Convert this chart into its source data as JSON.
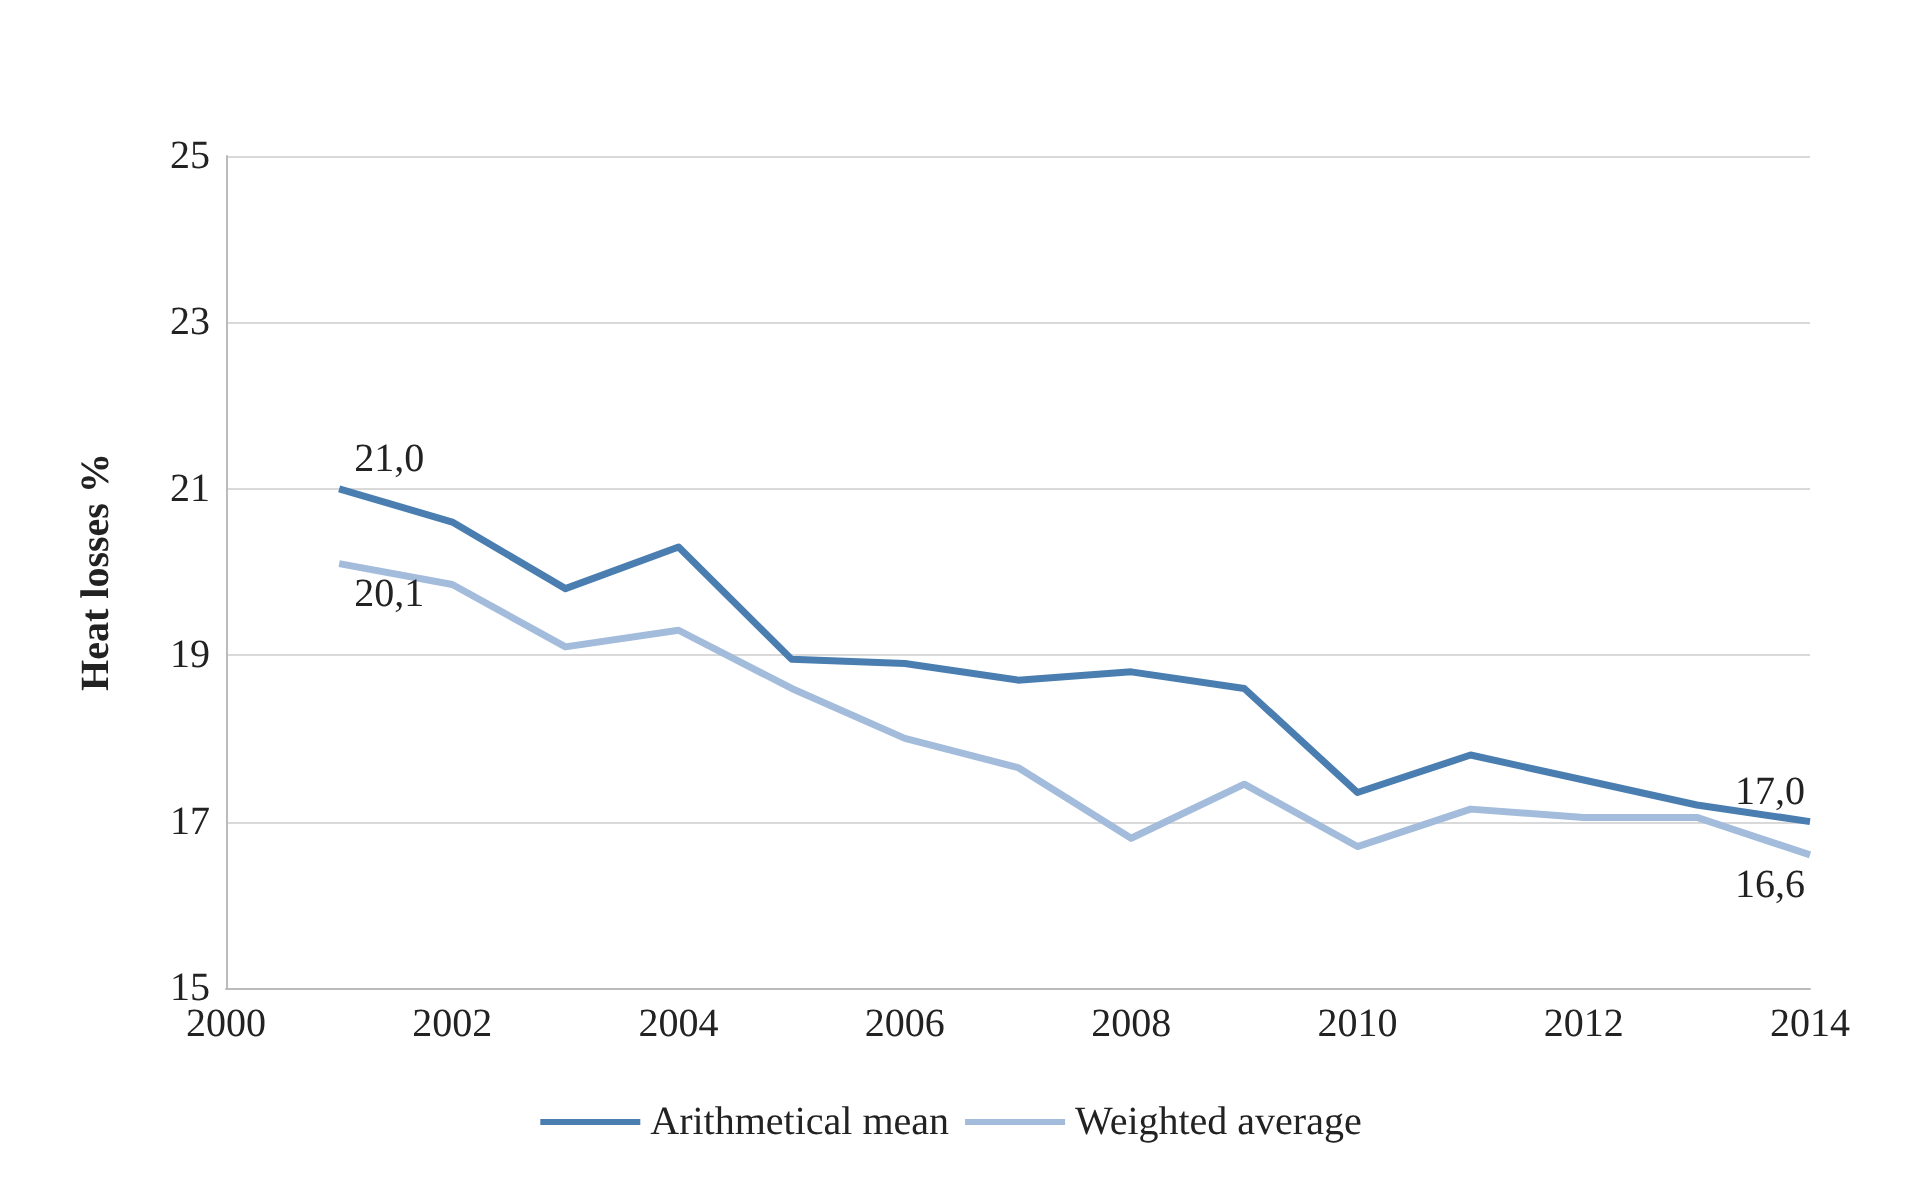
{
  "chart_data": {
    "type": "line",
    "ylabel": "Heat losses %",
    "x": [
      2001,
      2002,
      2003,
      2004,
      2005,
      2006,
      2007,
      2008,
      2009,
      2010,
      2011,
      2012,
      2013,
      2014
    ],
    "series": [
      {
        "name": "Arithmetical mean",
        "color": "#4a7eb0",
        "values": [
          21.0,
          20.6,
          19.8,
          20.3,
          18.95,
          18.9,
          18.7,
          18.8,
          18.6,
          17.35,
          17.8,
          17.5,
          17.2,
          17.0
        ],
        "value_labels": [
          "21,0",
          null,
          null,
          null,
          null,
          null,
          null,
          null,
          null,
          null,
          null,
          null,
          null,
          "17,0"
        ]
      },
      {
        "name": "Weighted average",
        "color": "#a3bcdc",
        "values": [
          20.1,
          19.85,
          19.1,
          19.3,
          18.6,
          18.0,
          17.65,
          16.8,
          17.45,
          16.7,
          17.15,
          17.05,
          17.05,
          16.6
        ],
        "value_labels": [
          "20,1",
          null,
          null,
          null,
          null,
          null,
          null,
          null,
          null,
          null,
          null,
          null,
          null,
          "16,6"
        ]
      }
    ],
    "xlim": [
      2000,
      2014
    ],
    "xticks": [
      2000,
      2002,
      2004,
      2006,
      2008,
      2010,
      2012,
      2014
    ],
    "ylim": [
      15,
      25
    ],
    "yticks": [
      15,
      17,
      19,
      21,
      23,
      25
    ],
    "grid": "y",
    "legend": "bottom",
    "marker": "none",
    "line_style": "solid"
  }
}
